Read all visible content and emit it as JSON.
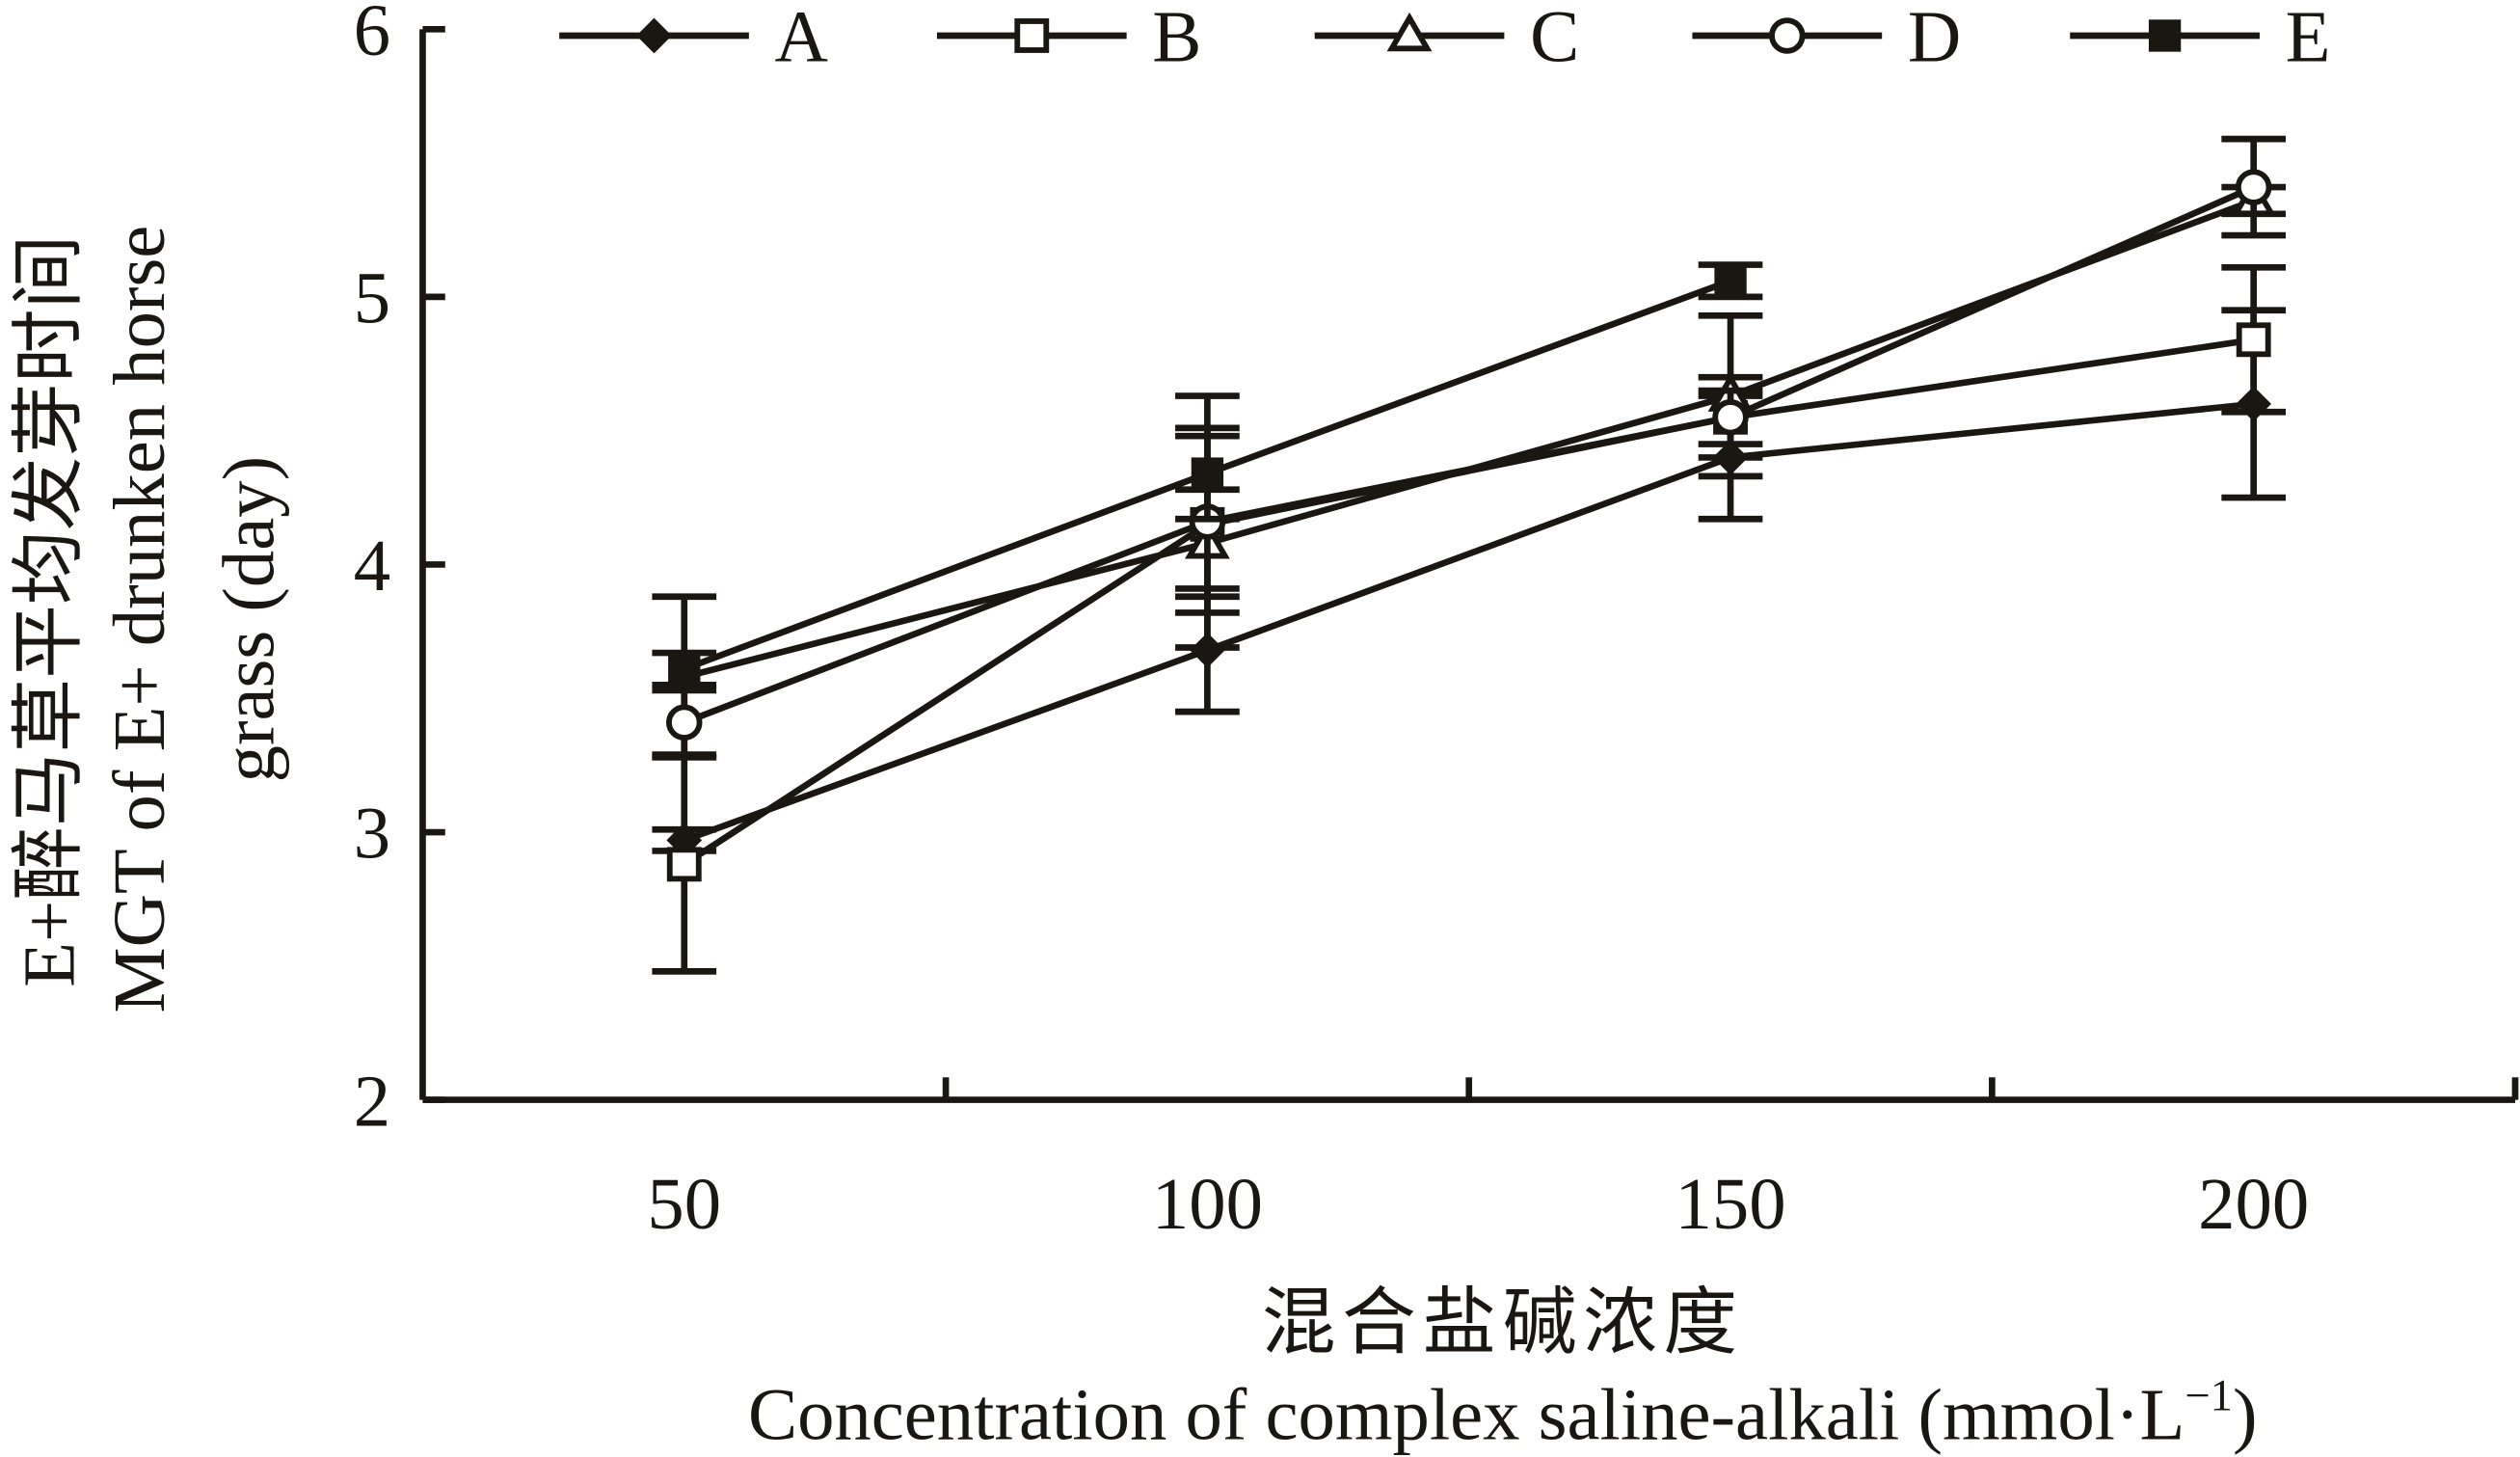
{
  "chart_data": {
    "type": "line",
    "title": "",
    "ylabel_cn": "E+醉马草平均发芽时间",
    "ylabel": "MGT of E+ drunken horse",
    "ylabel2": "grass (day)",
    "xlabel_cn": "混合盐碱浓度",
    "xlabel": "Concentration of complex saline-alkali (mmol·L",
    "xlabel_sup": "−1",
    "xlabel_end": ")",
    "x": [
      50,
      100,
      150,
      200
    ],
    "x_tick_labels": [
      "50",
      "100",
      "150",
      "200"
    ],
    "y_tick_labels": [
      "2",
      "3",
      "4",
      "5",
      "6"
    ],
    "ylim": [
      2,
      6
    ],
    "xlim": [
      25,
      225
    ],
    "grid": false,
    "legend_position": "top",
    "line_color": "#1a1712",
    "series": [
      {
        "name": "A",
        "marker": "diamond-filled",
        "values": [
          2.97,
          3.68,
          4.4,
          4.6
        ],
        "errors": [
          0.04,
          0.23,
          0.23,
          0.35
        ]
      },
      {
        "name": "B",
        "marker": "square-open",
        "values": [
          2.88,
          4.15,
          4.55,
          4.84
        ],
        "errors": [
          0.4,
          0.33,
          0.15,
          0.27
        ]
      },
      {
        "name": "C",
        "marker": "triangle-open",
        "values": [
          3.58,
          4.08,
          4.63,
          5.36
        ],
        "errors": [
          0.3,
          0.2,
          0.3,
          0.05
        ]
      },
      {
        "name": "D",
        "marker": "circle-open",
        "values": [
          3.41,
          4.16,
          4.55,
          5.41
        ],
        "errors": [
          0.12,
          0.47,
          0.1,
          0.18
        ]
      },
      {
        "name": "E",
        "marker": "square-filled",
        "values": [
          3.61,
          4.34,
          5.06,
          null
        ],
        "errors": [
          0.06,
          0.17,
          0.06,
          null
        ]
      }
    ]
  }
}
